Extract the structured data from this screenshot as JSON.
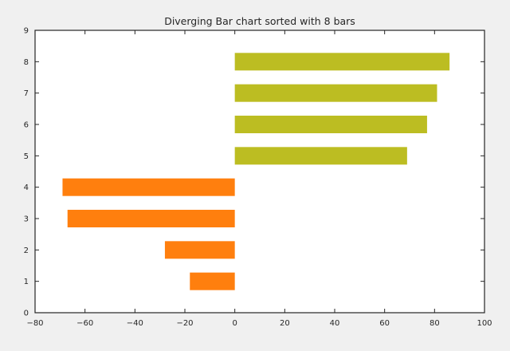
{
  "chart_data": {
    "type": "bar",
    "orientation": "horizontal",
    "title": "Diverging Bar chart sorted with 8 bars",
    "xlabel": "",
    "ylabel": "",
    "xlim": [
      -80,
      100
    ],
    "ylim": [
      0,
      9
    ],
    "x_ticks": [
      -80,
      -60,
      -40,
      -20,
      0,
      20,
      40,
      60,
      80,
      100
    ],
    "y_ticks": [
      0,
      1,
      2,
      3,
      4,
      5,
      6,
      7,
      8,
      9
    ],
    "grid": false,
    "legend": "none",
    "bars": [
      {
        "y": 1,
        "value": -18
      },
      {
        "y": 2,
        "value": -28
      },
      {
        "y": 3,
        "value": -67
      },
      {
        "y": 4,
        "value": -69
      },
      {
        "y": 5,
        "value": 69
      },
      {
        "y": 6,
        "value": 77
      },
      {
        "y": 7,
        "value": 81
      },
      {
        "y": 8,
        "value": 86
      }
    ],
    "colors": {
      "negative": "#ff7f0e",
      "positive": "#bcbd22",
      "plot_background": "#ffffff",
      "figure_background": "#f0f0f0",
      "axis": "#262626"
    }
  }
}
